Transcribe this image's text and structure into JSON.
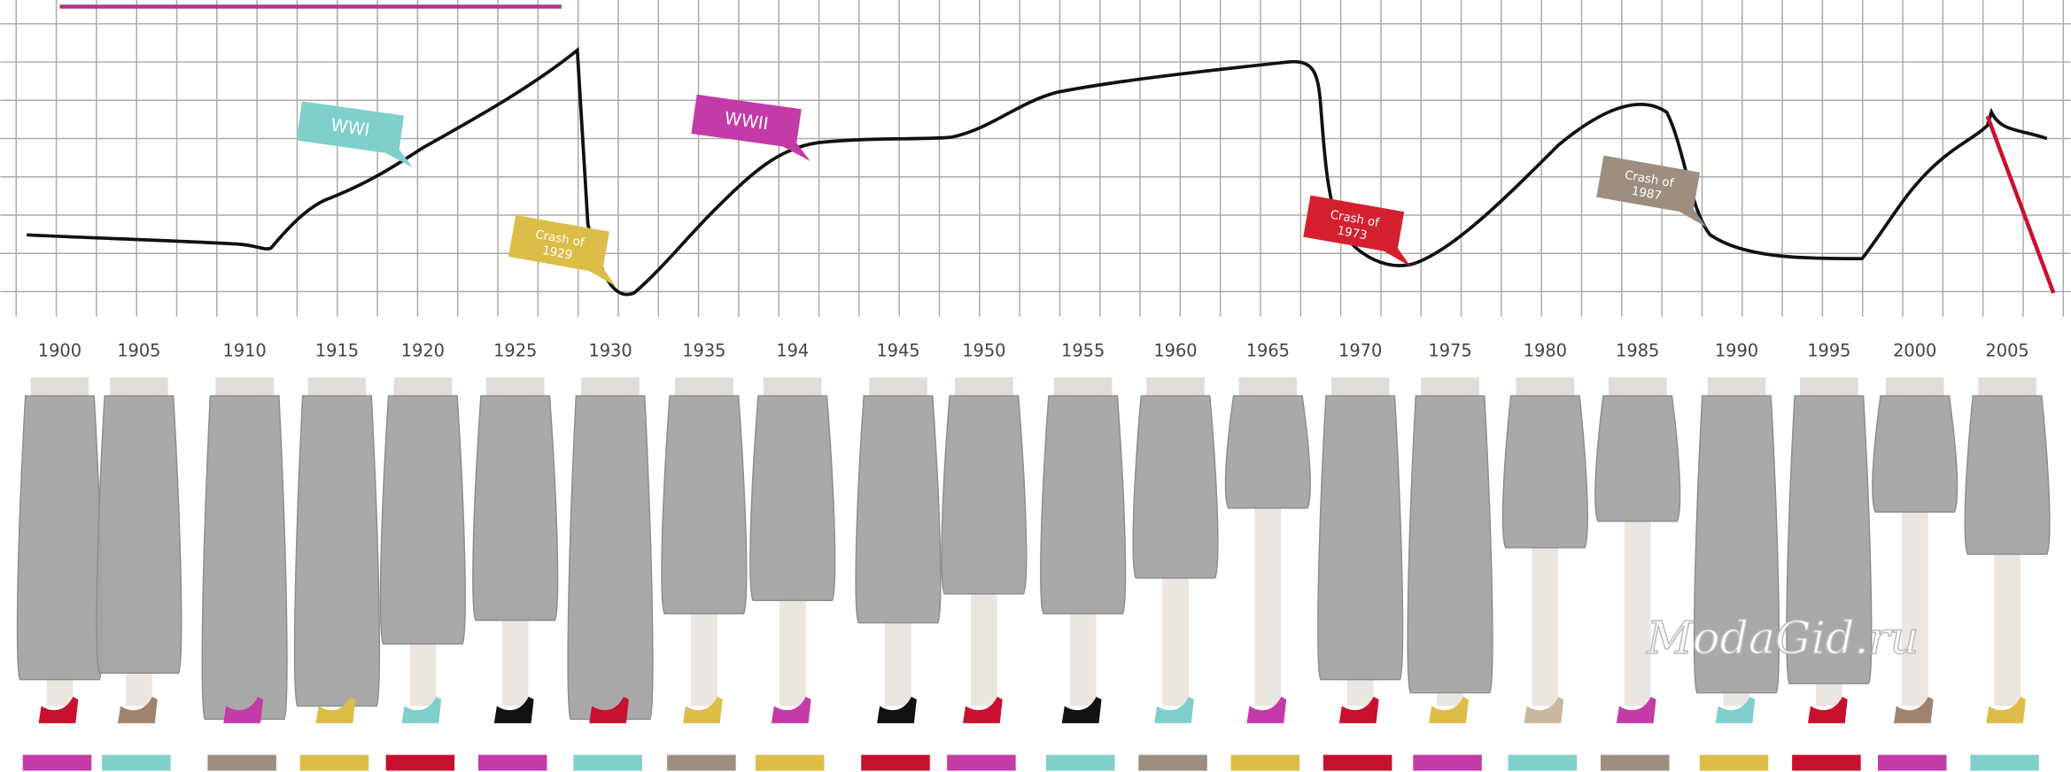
{
  "years": [
    "1900",
    "1905",
    "1910",
    "1915",
    "1920",
    "1925",
    "1930",
    "1935",
    "194",
    "1945",
    "1950",
    "1955",
    "1960",
    "1965",
    "1970",
    "1975",
    "1980",
    "1985",
    "1990",
    "1995",
    "2000",
    "2005"
  ],
  "annotations": [
    {
      "lines": [
        "WWI"
      ]
    },
    {
      "lines": [
        "WWII"
      ]
    },
    {
      "lines": [
        "Crash of",
        "1929"
      ]
    },
    {
      "lines": [
        "Crash of",
        "1973"
      ]
    },
    {
      "lines": [
        "Crash of",
        "1987"
      ]
    }
  ],
  "watermark": "ModaGid.ru"
}
